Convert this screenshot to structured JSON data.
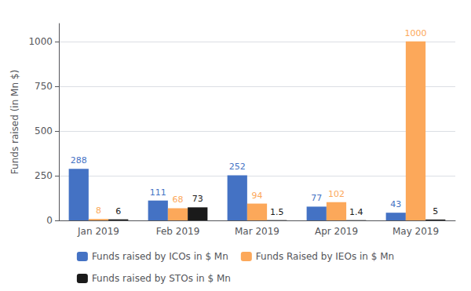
{
  "chart_data": {
    "type": "bar",
    "categories": [
      "Jan 2019",
      "Feb 2019",
      "Mar 2019",
      "Apr 2019",
      "May 2019"
    ],
    "series": [
      {
        "name": "Funds raised by ICOs in $ Mn",
        "color": "#4472C4",
        "values": [
          288,
          111,
          252,
          77,
          43
        ]
      },
      {
        "name": "Funds Raised by IEOs in $ Mn",
        "color": "#FCA85A",
        "values": [
          8,
          68,
          94,
          102,
          1000
        ]
      },
      {
        "name": "Funds raised by STOs in $ Mn",
        "color": "#1A1A1A",
        "values": [
          6,
          73,
          1.5,
          1.4,
          5
        ]
      }
    ],
    "ylabel": "Funds raised (in Mn $)",
    "ylim": [
      0,
      1100
    ],
    "yticks": [
      0,
      250,
      500,
      750,
      1000
    ],
    "grid": true,
    "legend": "bottom",
    "data_labels": true
  }
}
